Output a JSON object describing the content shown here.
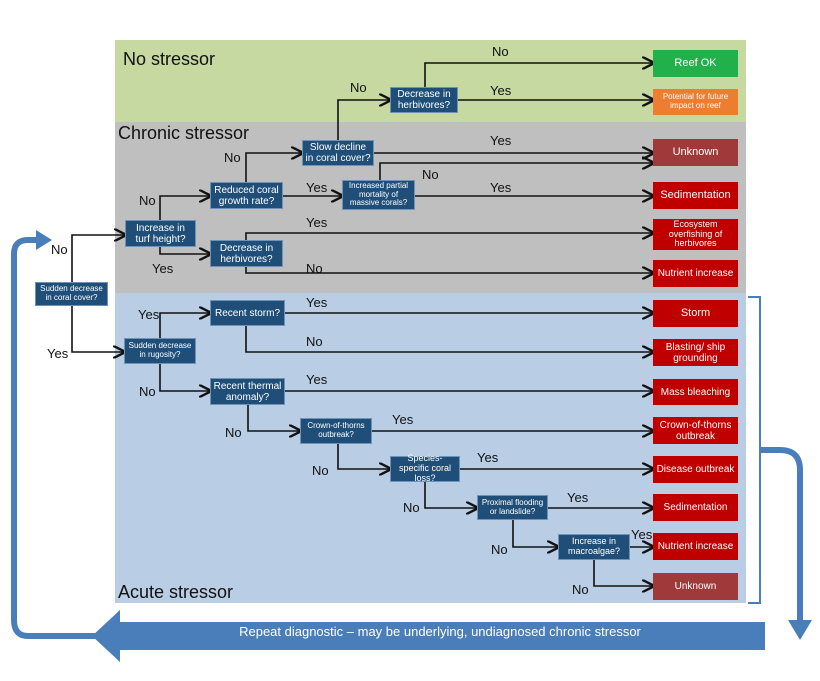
{
  "sections": {
    "none": "No stressor",
    "chronic": "Chronic stressor",
    "acute": "Acute stressor"
  },
  "colors": {
    "no_stressor_band": "#c5d9a0",
    "chronic_band": "#bfbfbf",
    "acute_band": "#b9cde5",
    "decision": "#1f4e79",
    "reef_ok": "#22b04b",
    "potential": "#ed7d31",
    "unknown": "#a0393a",
    "stressor": "#c00000",
    "loop_arrow": "#4a7ebb"
  },
  "decisions": [
    "Sudden decrease in coral cover?",
    "Increase in turf height?",
    "Reduced coral growth rate?",
    "Decrease in herbivores?",
    "Slow decline in coral cover?",
    "Increased partial mortality of massive corals?",
    "Decrease in herbivores?",
    "Sudden decrease in rugosity?",
    "Recent storm?",
    "Recent thermal anomaly?",
    "Crown-of-thorns outbreak?",
    "Species-specific coral loss?",
    "Proximal flooding or landslide?",
    "Increase in macroalgae?"
  ],
  "outcomes": [
    "Reef OK",
    "Potential for future impact on reef",
    "Unknown",
    "Sedimentation",
    "Ecosystem overfishing of herbivores",
    "Nutrient increase",
    "Storm",
    "Blasting/ ship grounding",
    "Mass bleaching",
    "Crown-of-thorns outbreak",
    "Disease outbreak",
    "Sedimentation",
    "Nutrient increase",
    "Unknown"
  ],
  "labels": [
    "No",
    "Yes",
    "No",
    "No",
    "Yes",
    "No",
    "Yes",
    "Yes",
    "No",
    "Yes",
    "No",
    "Yes",
    "No",
    "Yes",
    "Yes",
    "Yes",
    "No",
    "No",
    "Yes",
    "No",
    "Yes",
    "No",
    "Yes",
    "No",
    "Yes",
    "No",
    "Yes",
    "No"
  ],
  "repeat_text": "Repeat diagnostic – may be underlying, undiagnosed chronic stressor"
}
